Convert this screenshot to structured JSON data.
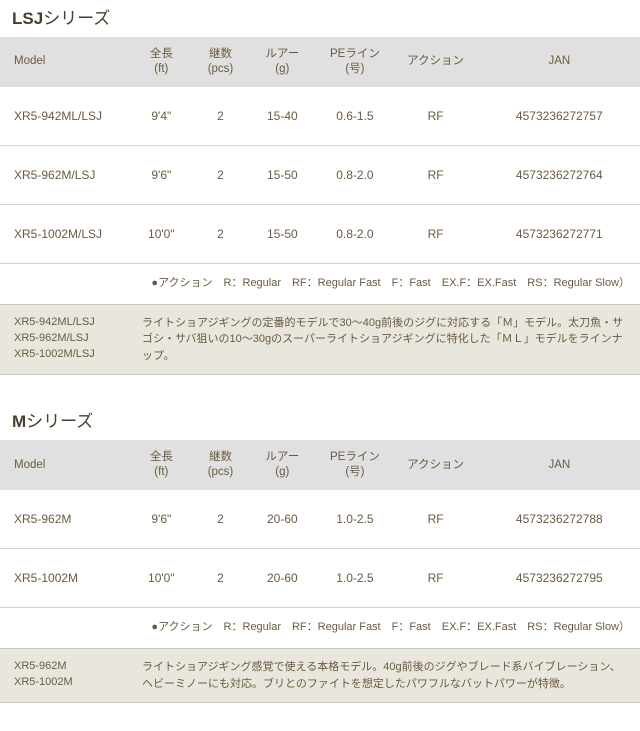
{
  "legend_text": "●アクション　R：Regular　RF：Regular Fast　F：Fast　EX.F：EX.Fast　RS：Regular Slow）",
  "columns": {
    "model": "Model",
    "length": "全長\n(ft)",
    "pcs": "継数\n(pcs)",
    "lure": "ルアー\n(g)",
    "pe": "PEライン\n(号)",
    "action": "アクション",
    "jan": "JAN"
  },
  "sections": [
    {
      "title_bold": "LSJ",
      "title_rest": "シリーズ",
      "rows": [
        {
          "model": "XR5-942ML/LSJ",
          "length": "9'4\"",
          "pcs": "2",
          "lure": "15-40",
          "pe": "0.6-1.5",
          "action": "RF",
          "jan": "4573236272757"
        },
        {
          "model": "XR5-962M/LSJ",
          "length": "9'6\"",
          "pcs": "2",
          "lure": "15-50",
          "pe": "0.8-2.0",
          "action": "RF",
          "jan": "4573236272764"
        },
        {
          "model": "XR5-1002M/LSJ",
          "length": "10'0\"",
          "pcs": "2",
          "lure": "15-50",
          "pe": "0.8-2.0",
          "action": "RF",
          "jan": "4573236272771"
        }
      ],
      "note_models": "XR5-942ML/LSJ\nXR5-962M/LSJ\nXR5-1002M/LSJ",
      "note_text": "ライトショアジギングの定番的モデルで30～40g前後のジグに対応する「Ｍ」モデル。太刀魚・サゴシ・サバ狙いの10～30gのスーパーライトショアジギングに特化した「ＭＬ」モデルをラインナップ。"
    },
    {
      "title_bold": "M",
      "title_rest": "シリーズ",
      "rows": [
        {
          "model": "XR5-962M",
          "length": "9'6\"",
          "pcs": "2",
          "lure": "20-60",
          "pe": "1.0-2.5",
          "action": "RF",
          "jan": "4573236272788"
        },
        {
          "model": "XR5-1002M",
          "length": "10'0\"",
          "pcs": "2",
          "lure": "20-60",
          "pe": "1.0-2.5",
          "action": "RF",
          "jan": "4573236272795"
        }
      ],
      "note_models": "XR5-962M\nXR5-1002M",
      "note_text": "ライトショアジギング感覚で使える本格モデル。40g前後のジグやブレード系バイブレーション、ヘビーミノーにも対応。ブリとのファイトを想定したパワフルなバットパワーが特徴。"
    }
  ]
}
